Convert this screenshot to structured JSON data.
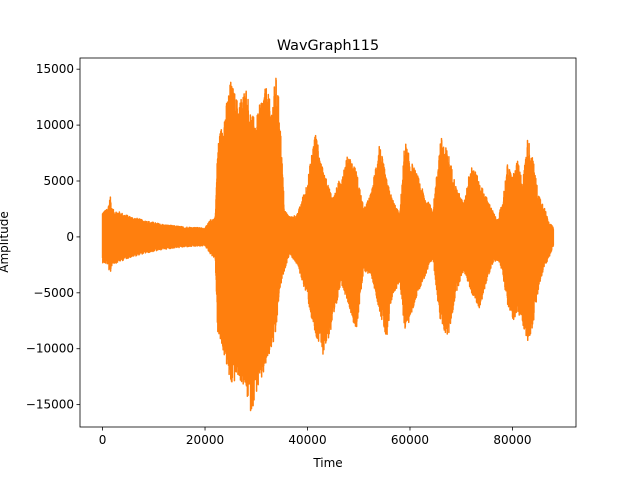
{
  "chart_data": {
    "type": "line",
    "title": "WavGraph115",
    "xlabel": "Time",
    "ylabel": "Amplitude",
    "xlim": [
      -4400,
      92400
    ],
    "ylim": [
      -17000,
      16000
    ],
    "xticks": [
      0,
      20000,
      40000,
      60000,
      80000
    ],
    "xtick_labels": [
      "0",
      "20000",
      "40000",
      "60000",
      "80000"
    ],
    "yticks": [
      -15000,
      -10000,
      -5000,
      0,
      5000,
      10000,
      15000
    ],
    "ytick_labels": [
      "−15000",
      "−10000",
      "−5000",
      "0",
      "5000",
      "10000",
      "15000"
    ],
    "grid": false,
    "series": [
      {
        "color": "#ff7f0e",
        "envelope": {
          "x": [
            0,
            1000,
            1500,
            1800,
            2200,
            3000,
            5000,
            8000,
            12000,
            16000,
            20000,
            21000,
            22000,
            22500,
            23000,
            24000,
            25000,
            26500,
            28000,
            29000,
            30000,
            31000,
            32000,
            33000,
            33800,
            34500,
            35500,
            36500,
            38000,
            40000,
            41500,
            43000,
            45000,
            46500,
            48000,
            49500,
            51000,
            52500,
            54000,
            55500,
            56500,
            58000,
            59000,
            60000,
            61500,
            63000,
            64500,
            66000,
            67500,
            69000,
            70500,
            72000,
            73500,
            75000,
            76000,
            77000,
            78000,
            79000,
            80000,
            81000,
            82000,
            83000,
            84000,
            85000,
            86000,
            87000,
            88000
          ],
          "max": [
            2300,
            2500,
            3900,
            2600,
            2400,
            2300,
            1900,
            1500,
            1100,
            900,
            800,
            1500,
            1800,
            8500,
            9500,
            11500,
            14000,
            12000,
            13500,
            11000,
            10500,
            12500,
            13500,
            11500,
            14500,
            12000,
            2500,
            1800,
            2000,
            5000,
            9500,
            6000,
            3500,
            5500,
            7500,
            6000,
            2500,
            4000,
            8500,
            5000,
            3500,
            2000,
            8700,
            7000,
            5500,
            3500,
            2500,
            9000,
            7500,
            4500,
            3000,
            6800,
            5000,
            3500,
            2500,
            1500,
            3000,
            6500,
            5500,
            6800,
            5000,
            9000,
            7000,
            4000,
            3000,
            1500,
            800
          ],
          "min": [
            -2300,
            -2500,
            -3400,
            -2600,
            -2400,
            -2300,
            -1900,
            -1500,
            -1100,
            -900,
            -800,
            -1500,
            -2000,
            -9000,
            -9500,
            -11000,
            -13500,
            -12500,
            -14000,
            -15800,
            -14000,
            -13000,
            -11500,
            -10000,
            -9000,
            -5000,
            -3000,
            -1500,
            -2500,
            -5500,
            -9000,
            -10500,
            -8000,
            -4000,
            -6000,
            -8500,
            -3000,
            -3500,
            -6500,
            -9500,
            -5500,
            -4000,
            -8500,
            -7500,
            -5000,
            -3500,
            -2000,
            -8000,
            -9000,
            -5000,
            -3000,
            -5000,
            -6500,
            -4000,
            -2500,
            -2000,
            -3000,
            -6000,
            -7500,
            -7000,
            -7800,
            -9500,
            -8000,
            -5000,
            -3000,
            -2000,
            -800
          ]
        }
      }
    ]
  }
}
